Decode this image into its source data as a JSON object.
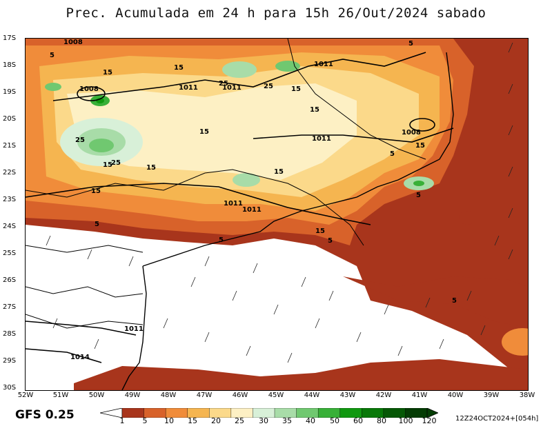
{
  "title": "Prec. Acumulada em 24 h para 15h 26/Out/2024 sabado",
  "model": "GFS 0.25",
  "run_info": "12Z24OCT2024+[054h]",
  "lat_labels": [
    "17S",
    "18S",
    "19S",
    "20S",
    "21S",
    "22S",
    "23S",
    "24S",
    "25S",
    "26S",
    "27S",
    "28S",
    "29S",
    "30S"
  ],
  "lon_labels": [
    "52W",
    "51W",
    "50W",
    "49W",
    "48W",
    "47W",
    "46W",
    "45W",
    "44W",
    "43W",
    "42W",
    "41W",
    "40W",
    "39W",
    "38W"
  ],
  "colorbar": {
    "labels": [
      "1",
      "5",
      "10",
      "15",
      "20",
      "25",
      "30",
      "35",
      "40",
      "50",
      "60",
      "80",
      "100",
      "120"
    ],
    "colors": [
      "#a8351c",
      "#d8622a",
      "#f08c3a",
      "#f5b550",
      "#fbd98a",
      "#fdf0c4",
      "#d8f0d8",
      "#a8dca8",
      "#70c870",
      "#38b038",
      "#109810",
      "#087808",
      "#065806",
      "#043c04"
    ]
  },
  "isobars": [
    "1008",
    "1011",
    "1011",
    "1011",
    "1008",
    "1011",
    "1008",
    "1011",
    "1011",
    "1011",
    "1014"
  ],
  "precip_labels": [
    "5",
    "15",
    "15",
    "25",
    "25",
    "25",
    "15",
    "15",
    "15",
    "25",
    "15",
    "15",
    "15",
    "15",
    "15",
    "5",
    "5",
    "5",
    "5",
    "5",
    "15",
    "5",
    "5"
  ]
}
